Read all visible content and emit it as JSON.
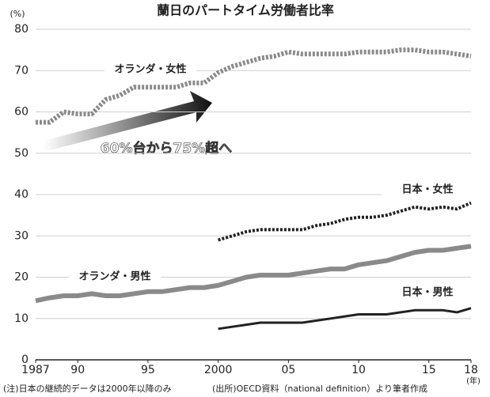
{
  "chart_data": {
    "type": "line",
    "title": "蘭日のパートタイム労働者比率",
    "y_unit": "(%)",
    "x_unit": "(年)",
    "annotation": "60%台から75%超へ",
    "notes": [
      "(注)日本の継続的データは2000年以降のみ",
      "(出所)OECD資料（national definition）より筆者作成"
    ],
    "x": [
      1987,
      1988,
      1989,
      1990,
      1991,
      1992,
      1993,
      1994,
      1995,
      1996,
      1997,
      1998,
      1999,
      2000,
      2001,
      2002,
      2003,
      2004,
      2005,
      2006,
      2007,
      2008,
      2009,
      2010,
      2011,
      2012,
      2013,
      2014,
      2015,
      2016,
      2017,
      2018
    ],
    "series": [
      {
        "name": "オランダ・女性",
        "color": "#8a8a8a",
        "style": "dotted",
        "values": [
          57.5,
          57.5,
          60,
          59.5,
          59.5,
          63,
          64,
          66,
          66,
          66,
          66,
          67,
          67,
          69.5,
          71,
          72,
          73,
          73.5,
          74.5,
          74,
          74,
          74,
          74,
          74.5,
          74.5,
          74.5,
          75,
          75,
          74.5,
          74.5,
          74,
          73.5
        ]
      },
      {
        "name": "日本・女性",
        "color": "#222222",
        "style": "dotted",
        "values": [
          null,
          null,
          null,
          null,
          null,
          null,
          null,
          null,
          null,
          null,
          null,
          null,
          null,
          29,
          30,
          31,
          31.5,
          31.5,
          31.5,
          31.5,
          32.5,
          33,
          34,
          34.5,
          34.5,
          35,
          36,
          37,
          36.5,
          37,
          36.5,
          38
        ]
      },
      {
        "name": "オランダ・男性",
        "color": "#8a8a8a",
        "style": "solid",
        "values": [
          14.3,
          15,
          15.5,
          15.5,
          16,
          15.5,
          15.5,
          16,
          16.5,
          16.5,
          17,
          17.5,
          17.5,
          18,
          19,
          20,
          20.5,
          20.5,
          20.5,
          21,
          21.5,
          22,
          22,
          23,
          23.5,
          24,
          25,
          26,
          26.5,
          26.5,
          27,
          27.5
        ]
      },
      {
        "name": "日本・男性",
        "color": "#222222",
        "style": "solid",
        "values": [
          null,
          null,
          null,
          null,
          null,
          null,
          null,
          null,
          null,
          null,
          null,
          null,
          null,
          7.5,
          8,
          8.5,
          9,
          9,
          9,
          9,
          9.5,
          10,
          10.5,
          11,
          11,
          11,
          11.5,
          12,
          12,
          12,
          11.5,
          12.5
        ]
      }
    ],
    "xlim": [
      1987,
      2018
    ],
    "xticks": [
      1987,
      {
        "value": 1990,
        "label": "90"
      },
      {
        "value": 1995,
        "label": "95"
      },
      2000,
      {
        "value": 2005,
        "label": "05"
      },
      {
        "value": 2010,
        "label": "10"
      },
      {
        "value": 2015,
        "label": "15"
      },
      {
        "value": 2018,
        "label": "18"
      }
    ],
    "ylim": [
      0,
      80
    ],
    "yticks": [
      0,
      10,
      20,
      30,
      40,
      50,
      60,
      70,
      80
    ],
    "grid": true
  }
}
